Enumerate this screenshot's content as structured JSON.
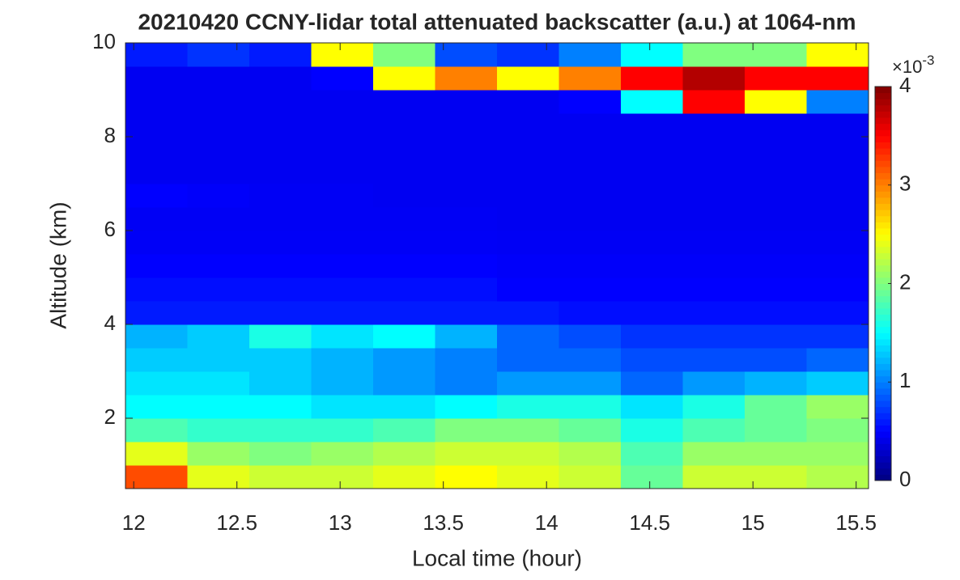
{
  "chart_data": {
    "type": "heatmap",
    "title": "20210420 CCNY-lidar total attenuated backscatter (a.u.) at 1064-nm",
    "xlabel": "Local time (hour)",
    "ylabel": "Altitude (km)",
    "xlim": [
      11.96,
      15.56
    ],
    "ylim": [
      0.5,
      10
    ],
    "xticks": [
      12,
      12.5,
      13,
      13.5,
      14,
      14.5,
      15,
      15.5
    ],
    "yticks": [
      2,
      4,
      6,
      8,
      10
    ],
    "x_edges": [
      11.96,
      12.26,
      12.56,
      12.86,
      13.16,
      13.46,
      13.76,
      14.06,
      14.36,
      14.66,
      14.96,
      15.26,
      15.56
    ],
    "y_edges": [
      0.5,
      1,
      1.5,
      2,
      2.5,
      3,
      3.5,
      4,
      4.5,
      5,
      5.5,
      6,
      6.5,
      7,
      7.5,
      8,
      8.5,
      9,
      9.5,
      10
    ],
    "z": [
      [
        3.2,
        2.4,
        2.3,
        2.3,
        2.4,
        2.5,
        2.4,
        2.3,
        1.9,
        2.3,
        2.3,
        2.2
      ],
      [
        2.4,
        2.1,
        2.0,
        2.1,
        2.2,
        2.3,
        2.3,
        2.2,
        1.8,
        2.1,
        2.1,
        2.1
      ],
      [
        1.8,
        1.7,
        1.7,
        1.7,
        1.8,
        2.0,
        2.0,
        1.9,
        1.6,
        1.8,
        1.9,
        2.0
      ],
      [
        1.5,
        1.5,
        1.5,
        1.4,
        1.4,
        1.5,
        1.6,
        1.6,
        1.4,
        1.6,
        1.9,
        2.1
      ],
      [
        1.4,
        1.4,
        1.3,
        1.2,
        1.1,
        1.0,
        1.1,
        1.1,
        0.9,
        1.1,
        1.2,
        1.3
      ],
      [
        1.3,
        1.3,
        1.3,
        1.2,
        1.1,
        1.0,
        0.9,
        0.9,
        0.8,
        0.8,
        0.8,
        0.9
      ],
      [
        1.2,
        1.3,
        1.6,
        1.4,
        1.5,
        1.2,
        0.9,
        0.8,
        0.7,
        0.7,
        0.7,
        0.7
      ],
      [
        0.6,
        0.6,
        0.6,
        0.6,
        0.6,
        0.6,
        0.6,
        0.55,
        0.55,
        0.55,
        0.55,
        0.55
      ],
      [
        0.55,
        0.55,
        0.55,
        0.55,
        0.55,
        0.55,
        0.5,
        0.5,
        0.5,
        0.5,
        0.5,
        0.5
      ],
      [
        0.5,
        0.5,
        0.5,
        0.5,
        0.5,
        0.5,
        0.48,
        0.48,
        0.48,
        0.48,
        0.48,
        0.48
      ],
      [
        0.47,
        0.47,
        0.47,
        0.47,
        0.47,
        0.47,
        0.46,
        0.46,
        0.46,
        0.46,
        0.46,
        0.46
      ],
      [
        0.46,
        0.46,
        0.46,
        0.46,
        0.46,
        0.46,
        0.45,
        0.45,
        0.45,
        0.45,
        0.45,
        0.45
      ],
      [
        0.5,
        0.48,
        0.46,
        0.46,
        0.45,
        0.45,
        0.45,
        0.45,
        0.45,
        0.45,
        0.45,
        0.45
      ],
      [
        0.45,
        0.45,
        0.45,
        0.45,
        0.45,
        0.45,
        0.45,
        0.45,
        0.45,
        0.45,
        0.45,
        0.45
      ],
      [
        0.45,
        0.45,
        0.45,
        0.45,
        0.45,
        0.45,
        0.45,
        0.45,
        0.45,
        0.45,
        0.45,
        0.45
      ],
      [
        0.45,
        0.45,
        0.45,
        0.45,
        0.45,
        0.45,
        0.45,
        0.45,
        0.45,
        0.45,
        0.45,
        0.45
      ],
      [
        0.45,
        0.45,
        0.45,
        0.45,
        0.45,
        0.45,
        0.45,
        0.5,
        1.5,
        3.5,
        2.5,
        1.0
      ],
      [
        0.45,
        0.45,
        0.45,
        0.5,
        2.5,
        3.0,
        2.5,
        3.0,
        3.5,
        3.8,
        3.5,
        3.5
      ],
      [
        0.6,
        0.7,
        0.6,
        2.5,
        2.0,
        0.8,
        0.7,
        1.0,
        1.5,
        2.0,
        2.0,
        2.5
      ]
    ],
    "colormap": "jet",
    "clim": [
      0,
      4
    ],
    "cticks": [
      0,
      1,
      2,
      3,
      4
    ],
    "colorbar_multiplier": "×10",
    "colorbar_exponent": "-3"
  }
}
